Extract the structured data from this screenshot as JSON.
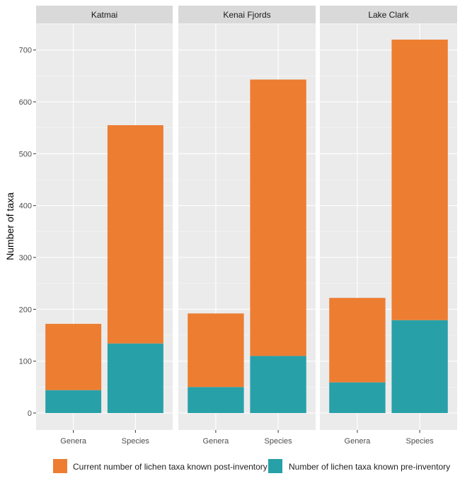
{
  "chart_data": {
    "type": "bar",
    "stacked": true,
    "facets": [
      "Katmai",
      "Kenai Fjords",
      "Lake Clark"
    ],
    "categories": [
      "Genera",
      "Species"
    ],
    "ylabel": "Number of taxa",
    "xlabel": "",
    "yticks": [
      0,
      100,
      200,
      300,
      400,
      500,
      600,
      700
    ],
    "ylim": [
      0,
      720
    ],
    "grid": true,
    "legend_position": "bottom",
    "series": [
      {
        "name": "Number of lichen taxa known pre-inventory",
        "color": "#28a0a8",
        "values": {
          "Katmai": [
            44,
            134
          ],
          "Kenai Fjords": [
            50,
            110
          ],
          "Lake Clark": [
            59,
            179
          ]
        }
      },
      {
        "name": "Current number of lichen taxa known post-inventory",
        "color": "#ed7d31",
        "totals": {
          "Katmai": [
            172,
            555
          ],
          "Kenai Fjords": [
            192,
            643
          ],
          "Lake Clark": [
            222,
            720
          ]
        }
      }
    ]
  },
  "legend": [
    {
      "label": "Current number of lichen taxa known post-inventory",
      "color": "#ed7d31"
    },
    {
      "label": "Number of lichen taxa known pre-inventory",
      "color": "#28a0a8"
    }
  ]
}
